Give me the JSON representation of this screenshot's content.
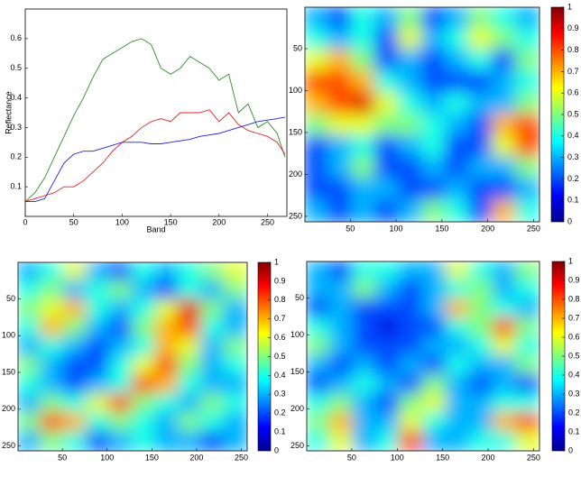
{
  "chart_data": [
    {
      "type": "line",
      "x_label": "Band",
      "y_label": "Reflectance",
      "x": [
        0,
        10,
        20,
        30,
        40,
        50,
        60,
        70,
        80,
        90,
        100,
        110,
        120,
        130,
        140,
        150,
        160,
        170,
        180,
        190,
        200,
        210,
        220,
        230,
        240,
        250,
        260,
        268
      ],
      "xlim": [
        0,
        270
      ],
      "ylim": [
        0,
        0.7
      ],
      "xticks": [
        0,
        50,
        100,
        150,
        200,
        250
      ],
      "yticks": [
        0.1,
        0.2,
        0.3,
        0.4,
        0.5,
        0.6
      ],
      "series": [
        {
          "color": "#2e8b2e",
          "values": [
            0.05,
            0.08,
            0.13,
            0.2,
            0.27,
            0.34,
            0.4,
            0.47,
            0.53,
            0.55,
            0.57,
            0.59,
            0.6,
            0.58,
            0.5,
            0.48,
            0.5,
            0.54,
            0.52,
            0.5,
            0.46,
            0.48,
            0.35,
            0.38,
            0.3,
            0.32,
            0.28,
            0.2
          ]
        },
        {
          "color": "#e02020",
          "values": [
            0.05,
            0.06,
            0.07,
            0.08,
            0.1,
            0.1,
            0.12,
            0.15,
            0.18,
            0.22,
            0.25,
            0.27,
            0.3,
            0.32,
            0.33,
            0.32,
            0.35,
            0.35,
            0.35,
            0.36,
            0.32,
            0.35,
            0.31,
            0.29,
            0.28,
            0.27,
            0.25,
            0.21
          ]
        },
        {
          "color": "#2020e0",
          "values": [
            0.05,
            0.05,
            0.06,
            0.12,
            0.18,
            0.21,
            0.22,
            0.22,
            0.23,
            0.24,
            0.25,
            0.25,
            0.25,
            0.245,
            0.245,
            0.25,
            0.255,
            0.26,
            0.27,
            0.275,
            0.28,
            0.29,
            0.3,
            0.31,
            0.32,
            0.325,
            0.33,
            0.335
          ]
        }
      ]
    },
    {
      "type": "heatmap",
      "xlim": [
        0.5,
        256.5
      ],
      "ylim": [
        0.5,
        256.5
      ],
      "clim": [
        0,
        1
      ],
      "xticks": [
        50,
        100,
        150,
        200,
        250
      ],
      "yticks": [
        50,
        100,
        150,
        200,
        250
      ],
      "cticks": [
        0,
        0.1,
        0.2,
        0.3,
        0.4,
        0.5,
        0.6,
        0.7,
        0.8,
        0.9,
        1
      ],
      "z": [
        [
          0.3,
          0.2,
          0.4,
          0.3,
          0.5,
          0.2,
          0.3,
          0.5,
          0.4,
          0.3
        ],
        [
          0.4,
          0.3,
          0.4,
          0.2,
          0.6,
          0.3,
          0.4,
          0.6,
          0.5,
          0.4
        ],
        [
          0.6,
          0.7,
          0.5,
          0.2,
          0.3,
          0.2,
          0.3,
          0.4,
          0.2,
          0.5
        ],
        [
          0.8,
          0.8,
          0.7,
          0.4,
          0.3,
          0.2,
          0.2,
          0.2,
          0.3,
          0.4
        ],
        [
          0.7,
          0.8,
          0.9,
          0.6,
          0.4,
          0.3,
          0.4,
          0.3,
          0.3,
          0.5
        ],
        [
          0.5,
          0.6,
          0.6,
          0.5,
          0.5,
          0.4,
          0.3,
          0.2,
          0.7,
          0.8
        ],
        [
          0.2,
          0.3,
          0.4,
          0.2,
          0.3,
          0.4,
          0.2,
          0.2,
          0.6,
          0.8
        ],
        [
          0.2,
          0.3,
          0.5,
          0.2,
          0.2,
          0.3,
          0.2,
          0.3,
          0.3,
          0.5
        ],
        [
          0.2,
          0.2,
          0.3,
          0.3,
          0.2,
          0.2,
          0.3,
          0.2,
          0.2,
          0.3
        ],
        [
          0.3,
          0.2,
          0.3,
          0.2,
          0.3,
          0.5,
          0.4,
          0.2,
          0.7,
          0.4
        ]
      ]
    },
    {
      "type": "heatmap",
      "xlim": [
        0.5,
        256.5
      ],
      "ylim": [
        0.5,
        256.5
      ],
      "clim": [
        0,
        1
      ],
      "xticks": [
        50,
        100,
        150,
        200,
        250
      ],
      "yticks": [
        50,
        100,
        150,
        200,
        250
      ],
      "cticks": [
        0,
        0.1,
        0.2,
        0.3,
        0.4,
        0.5,
        0.6,
        0.7,
        0.8,
        0.9,
        1
      ],
      "z": [
        [
          0.3,
          0.4,
          0.6,
          0.3,
          0.2,
          0.4,
          0.3,
          0.4,
          0.5,
          0.6
        ],
        [
          0.4,
          0.5,
          0.3,
          0.4,
          0.5,
          0.3,
          0.2,
          0.4,
          0.3,
          0.5
        ],
        [
          0.5,
          0.6,
          0.7,
          0.4,
          0.3,
          0.4,
          0.6,
          0.9,
          0.5,
          0.3
        ],
        [
          0.4,
          0.7,
          0.5,
          0.3,
          0.2,
          0.5,
          0.7,
          0.8,
          0.4,
          0.3
        ],
        [
          0.3,
          0.4,
          0.3,
          0.2,
          0.3,
          0.4,
          0.7,
          0.6,
          0.3,
          0.5
        ],
        [
          0.5,
          0.3,
          0.2,
          0.2,
          0.4,
          0.6,
          0.8,
          0.5,
          0.3,
          0.4
        ],
        [
          0.4,
          0.3,
          0.2,
          0.3,
          0.4,
          0.8,
          0.7,
          0.4,
          0.3,
          0.3
        ],
        [
          0.3,
          0.5,
          0.4,
          0.6,
          0.8,
          0.5,
          0.4,
          0.3,
          0.5,
          0.4
        ],
        [
          0.5,
          0.8,
          0.7,
          0.4,
          0.5,
          0.4,
          0.3,
          0.5,
          0.4,
          0.3
        ],
        [
          0.3,
          0.5,
          0.4,
          0.2,
          0.3,
          0.4,
          0.3,
          0.3,
          0.2,
          0.3
        ]
      ]
    },
    {
      "type": "heatmap",
      "xlim": [
        0.5,
        256.5
      ],
      "ylim": [
        0.5,
        256.5
      ],
      "clim": [
        0,
        1
      ],
      "xticks": [
        50,
        100,
        150,
        200,
        250
      ],
      "yticks": [
        50,
        100,
        150,
        200,
        250
      ],
      "cticks": [
        0,
        0.1,
        0.2,
        0.3,
        0.4,
        0.5,
        0.6,
        0.7,
        0.8,
        0.9,
        1
      ],
      "z": [
        [
          0.3,
          0.2,
          0.4,
          0.4,
          0.3,
          0.3,
          0.6,
          0.4,
          0.3,
          0.5
        ],
        [
          0.3,
          0.3,
          0.5,
          0.3,
          0.2,
          0.3,
          0.4,
          0.5,
          0.3,
          0.4
        ],
        [
          0.2,
          0.3,
          0.2,
          0.2,
          0.2,
          0.3,
          0.7,
          0.5,
          0.4,
          0.3
        ],
        [
          0.4,
          0.3,
          0.2,
          0.1,
          0.2,
          0.2,
          0.4,
          0.5,
          0.8,
          0.5
        ],
        [
          0.5,
          0.3,
          0.2,
          0.2,
          0.2,
          0.3,
          0.3,
          0.4,
          0.6,
          0.4
        ],
        [
          0.3,
          0.2,
          0.3,
          0.2,
          0.3,
          0.2,
          0.4,
          0.3,
          0.3,
          0.5
        ],
        [
          0.2,
          0.3,
          0.4,
          0.3,
          0.2,
          0.5,
          0.3,
          0.2,
          0.3,
          0.2
        ],
        [
          0.4,
          0.5,
          0.3,
          0.2,
          0.5,
          0.6,
          0.3,
          0.3,
          0.4,
          0.4
        ],
        [
          0.5,
          0.7,
          0.3,
          0.3,
          0.6,
          0.4,
          0.3,
          0.3,
          0.7,
          0.8
        ],
        [
          0.4,
          0.6,
          0.3,
          0.4,
          0.8,
          0.3,
          0.3,
          0.4,
          0.4,
          0.6
        ]
      ]
    }
  ]
}
